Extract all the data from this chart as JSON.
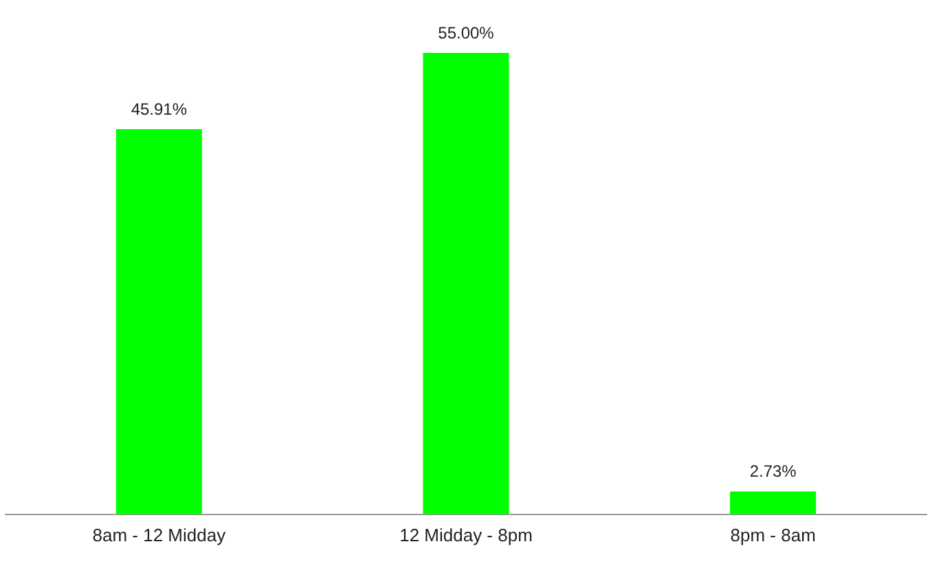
{
  "chart_data": {
    "type": "bar",
    "categories": [
      "8am - 12 Midday",
      "12 Midday - 8pm",
      "8pm - 8am"
    ],
    "values": [
      45.91,
      55.0,
      2.73
    ],
    "value_labels": [
      "45.91%",
      "55.00%",
      "2.73%"
    ],
    "color": "#00ff00",
    "grid": false,
    "legend": false
  }
}
